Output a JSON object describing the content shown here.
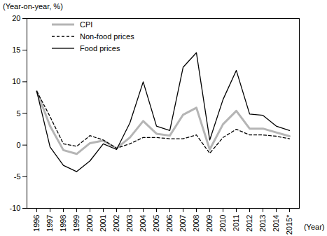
{
  "chart_data": {
    "type": "line",
    "y_label": "(Year-on-year, %)",
    "x_label": "(Year)",
    "categories": [
      "1996",
      "1997",
      "1998",
      "1999",
      "2000",
      "2001",
      "2002",
      "2003",
      "2004",
      "2005",
      "2006",
      "2007",
      "2008",
      "2009",
      "2010",
      "2011",
      "2012",
      "2013",
      "2014",
      "2015*"
    ],
    "series": [
      {
        "name": "CPI",
        "color": "#b5b5b5",
        "line_style": "solid",
        "values": [
          8.5,
          3.0,
          -0.8,
          -1.4,
          0.3,
          0.7,
          -0.5,
          1.2,
          3.8,
          1.8,
          1.5,
          4.8,
          5.9,
          -0.7,
          3.3,
          5.4,
          2.6,
          2.6,
          2.0,
          1.4
        ]
      },
      {
        "name": "Non-food prices",
        "color": "#000000",
        "line_style": "dashed",
        "values": [
          8.5,
          4.5,
          0.2,
          -0.2,
          1.5,
          0.8,
          -0.5,
          0.2,
          1.2,
          1.2,
          1.0,
          1.0,
          1.6,
          -1.3,
          1.2,
          2.5,
          1.6,
          1.6,
          1.4,
          1.0
        ]
      },
      {
        "name": "Food prices",
        "color": "#000000",
        "line_style": "solid",
        "values": [
          8.5,
          -0.3,
          -3.2,
          -4.2,
          -2.5,
          0.2,
          -0.7,
          3.5,
          10.0,
          3.0,
          2.3,
          12.3,
          14.6,
          0.8,
          7.2,
          11.8,
          4.9,
          4.7,
          3.0,
          2.3
        ]
      }
    ],
    "ylim": [
      -10,
      20
    ],
    "yticks": [
      -10,
      -5,
      0,
      5,
      10,
      15,
      20
    ],
    "grid": false,
    "legend": "top-left"
  }
}
